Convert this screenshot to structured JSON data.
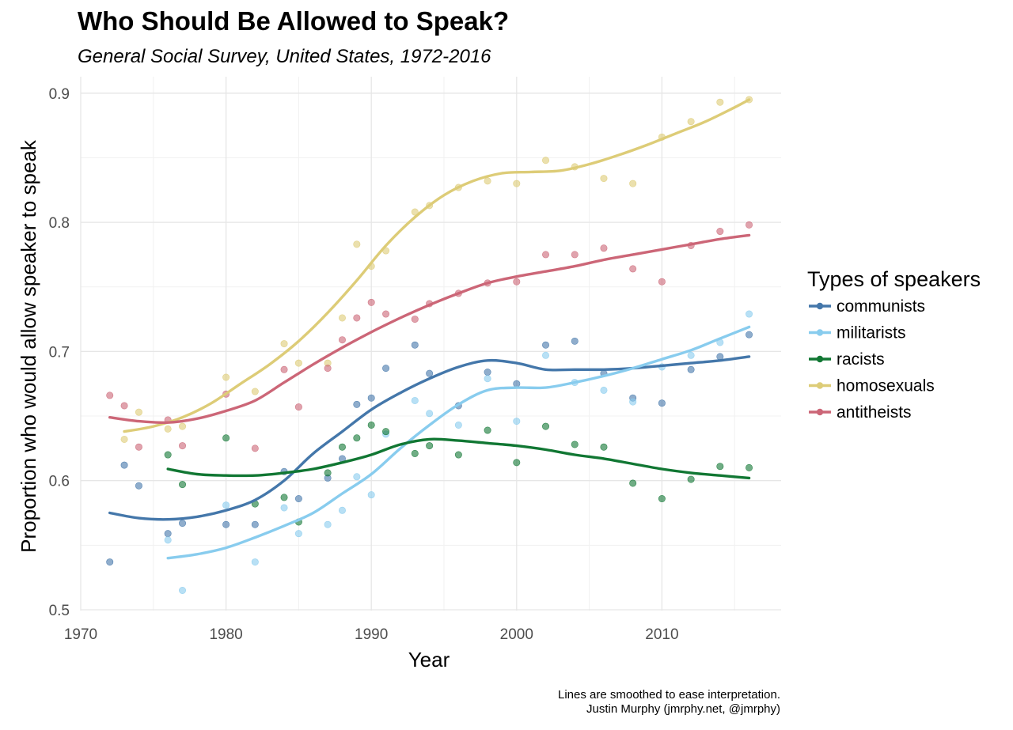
{
  "chart_data": {
    "type": "scatter",
    "title": "Who Should Be Allowed to Speak?",
    "subtitle": "General Social Survey, United States, 1972-2016",
    "xlabel": "Year",
    "ylabel": "Proportion who would allow speaker to speak",
    "xlim": [
      1970,
      2018
    ],
    "ylim": [
      0.5,
      0.9
    ],
    "x_ticks": [
      1970,
      1980,
      1990,
      2000,
      2010
    ],
    "y_ticks": [
      0.5,
      0.6,
      0.7,
      0.8,
      0.9
    ],
    "grid": true,
    "legend": {
      "title": "Types of speakers",
      "position": "right"
    },
    "caption": [
      "Lines are smoothed to ease interpretation.",
      "Justin Murphy (jmrphy.net, @jmrphy)"
    ],
    "series": [
      {
        "name": "communists",
        "color": "#4477aa",
        "points": [
          [
            1972,
            0.537
          ],
          [
            1973,
            0.612
          ],
          [
            1974,
            0.596
          ],
          [
            1976,
            0.559
          ],
          [
            1977,
            0.567
          ],
          [
            1980,
            0.566
          ],
          [
            1982,
            0.566
          ],
          [
            1984,
            0.607
          ],
          [
            1985,
            0.586
          ],
          [
            1987,
            0.602
          ],
          [
            1988,
            0.617
          ],
          [
            1989,
            0.659
          ],
          [
            1990,
            0.664
          ],
          [
            1991,
            0.687
          ],
          [
            1993,
            0.705
          ],
          [
            1994,
            0.683
          ],
          [
            1996,
            0.658
          ],
          [
            1998,
            0.684
          ],
          [
            2000,
            0.675
          ],
          [
            2002,
            0.705
          ],
          [
            2004,
            0.708
          ],
          [
            2006,
            0.683
          ],
          [
            2008,
            0.664
          ],
          [
            2010,
            0.66
          ],
          [
            2012,
            0.686
          ],
          [
            2014,
            0.696
          ],
          [
            2016,
            0.713
          ]
        ],
        "smooth": [
          [
            1972,
            0.575
          ],
          [
            1974,
            0.571
          ],
          [
            1976,
            0.57
          ],
          [
            1978,
            0.572
          ],
          [
            1980,
            0.577
          ],
          [
            1982,
            0.585
          ],
          [
            1984,
            0.6
          ],
          [
            1986,
            0.621
          ],
          [
            1988,
            0.638
          ],
          [
            1990,
            0.655
          ],
          [
            1992,
            0.668
          ],
          [
            1994,
            0.679
          ],
          [
            1996,
            0.688
          ],
          [
            1998,
            0.693
          ],
          [
            2000,
            0.691
          ],
          [
            2002,
            0.686
          ],
          [
            2004,
            0.686
          ],
          [
            2006,
            0.686
          ],
          [
            2008,
            0.687
          ],
          [
            2010,
            0.689
          ],
          [
            2012,
            0.691
          ],
          [
            2014,
            0.693
          ],
          [
            2016,
            0.696
          ]
        ]
      },
      {
        "name": "militarists",
        "color": "#88ccee",
        "points": [
          [
            1976,
            0.554
          ],
          [
            1977,
            0.515
          ],
          [
            1980,
            0.581
          ],
          [
            1982,
            0.537
          ],
          [
            1984,
            0.579
          ],
          [
            1985,
            0.559
          ],
          [
            1987,
            0.566
          ],
          [
            1988,
            0.577
          ],
          [
            1989,
            0.603
          ],
          [
            1990,
            0.589
          ],
          [
            1991,
            0.636
          ],
          [
            1993,
            0.662
          ],
          [
            1994,
            0.652
          ],
          [
            1996,
            0.643
          ],
          [
            1998,
            0.679
          ],
          [
            2000,
            0.646
          ],
          [
            2002,
            0.697
          ],
          [
            2004,
            0.676
          ],
          [
            2006,
            0.67
          ],
          [
            2008,
            0.661
          ],
          [
            2010,
            0.688
          ],
          [
            2012,
            0.697
          ],
          [
            2014,
            0.707
          ],
          [
            2016,
            0.729
          ]
        ],
        "smooth": [
          [
            1976,
            0.54
          ],
          [
            1978,
            0.543
          ],
          [
            1980,
            0.548
          ],
          [
            1982,
            0.556
          ],
          [
            1984,
            0.565
          ],
          [
            1986,
            0.575
          ],
          [
            1988,
            0.59
          ],
          [
            1990,
            0.605
          ],
          [
            1992,
            0.625
          ],
          [
            1994,
            0.643
          ],
          [
            1996,
            0.659
          ],
          [
            1998,
            0.67
          ],
          [
            2000,
            0.672
          ],
          [
            2002,
            0.672
          ],
          [
            2004,
            0.676
          ],
          [
            2006,
            0.681
          ],
          [
            2008,
            0.687
          ],
          [
            2010,
            0.694
          ],
          [
            2012,
            0.701
          ],
          [
            2014,
            0.71
          ],
          [
            2016,
            0.719
          ]
        ]
      },
      {
        "name": "racists",
        "color": "#117733",
        "points": [
          [
            1976,
            0.62
          ],
          [
            1977,
            0.597
          ],
          [
            1980,
            0.633
          ],
          [
            1982,
            0.582
          ],
          [
            1984,
            0.587
          ],
          [
            1985,
            0.568
          ],
          [
            1987,
            0.606
          ],
          [
            1988,
            0.626
          ],
          [
            1989,
            0.633
          ],
          [
            1990,
            0.643
          ],
          [
            1991,
            0.638
          ],
          [
            1993,
            0.621
          ],
          [
            1994,
            0.627
          ],
          [
            1996,
            0.62
          ],
          [
            1998,
            0.639
          ],
          [
            2000,
            0.614
          ],
          [
            2002,
            0.642
          ],
          [
            2004,
            0.628
          ],
          [
            2006,
            0.626
          ],
          [
            2008,
            0.598
          ],
          [
            2010,
            0.586
          ],
          [
            2012,
            0.601
          ],
          [
            2014,
            0.611
          ],
          [
            2016,
            0.61
          ]
        ],
        "smooth": [
          [
            1976,
            0.609
          ],
          [
            1978,
            0.605
          ],
          [
            1980,
            0.604
          ],
          [
            1982,
            0.604
          ],
          [
            1984,
            0.606
          ],
          [
            1986,
            0.609
          ],
          [
            1988,
            0.614
          ],
          [
            1990,
            0.62
          ],
          [
            1992,
            0.628
          ],
          [
            1994,
            0.632
          ],
          [
            1996,
            0.631
          ],
          [
            1998,
            0.629
          ],
          [
            2000,
            0.627
          ],
          [
            2002,
            0.624
          ],
          [
            2004,
            0.62
          ],
          [
            2006,
            0.617
          ],
          [
            2008,
            0.613
          ],
          [
            2010,
            0.609
          ],
          [
            2012,
            0.606
          ],
          [
            2014,
            0.604
          ],
          [
            2016,
            0.602
          ]
        ]
      },
      {
        "name": "homosexuals",
        "color": "#ddcc77",
        "points": [
          [
            1973,
            0.632
          ],
          [
            1974,
            0.653
          ],
          [
            1976,
            0.64
          ],
          [
            1977,
            0.642
          ],
          [
            1980,
            0.68
          ],
          [
            1982,
            0.669
          ],
          [
            1984,
            0.706
          ],
          [
            1985,
            0.691
          ],
          [
            1987,
            0.691
          ],
          [
            1988,
            0.726
          ],
          [
            1989,
            0.783
          ],
          [
            1990,
            0.766
          ],
          [
            1991,
            0.778
          ],
          [
            1993,
            0.808
          ],
          [
            1994,
            0.813
          ],
          [
            1996,
            0.827
          ],
          [
            1998,
            0.832
          ],
          [
            2000,
            0.83
          ],
          [
            2002,
            0.848
          ],
          [
            2004,
            0.843
          ],
          [
            2006,
            0.834
          ],
          [
            2008,
            0.83
          ],
          [
            2010,
            0.866
          ],
          [
            2012,
            0.878
          ],
          [
            2014,
            0.893
          ],
          [
            2016,
            0.895
          ]
        ],
        "smooth": [
          [
            1973,
            0.638
          ],
          [
            1975,
            0.642
          ],
          [
            1977,
            0.649
          ],
          [
            1979,
            0.66
          ],
          [
            1981,
            0.675
          ],
          [
            1983,
            0.69
          ],
          [
            1985,
            0.708
          ],
          [
            1987,
            0.73
          ],
          [
            1989,
            0.755
          ],
          [
            1991,
            0.782
          ],
          [
            1993,
            0.804
          ],
          [
            1995,
            0.821
          ],
          [
            1997,
            0.832
          ],
          [
            1999,
            0.838
          ],
          [
            2001,
            0.839
          ],
          [
            2003,
            0.84
          ],
          [
            2005,
            0.845
          ],
          [
            2007,
            0.852
          ],
          [
            2009,
            0.86
          ],
          [
            2011,
            0.869
          ],
          [
            2013,
            0.878
          ],
          [
            2015,
            0.889
          ],
          [
            2016,
            0.895
          ]
        ]
      },
      {
        "name": "antitheists",
        "color": "#cc6677",
        "points": [
          [
            1972,
            0.666
          ],
          [
            1973,
            0.658
          ],
          [
            1974,
            0.626
          ],
          [
            1976,
            0.647
          ],
          [
            1977,
            0.627
          ],
          [
            1980,
            0.667
          ],
          [
            1982,
            0.625
          ],
          [
            1984,
            0.686
          ],
          [
            1985,
            0.657
          ],
          [
            1987,
            0.687
          ],
          [
            1988,
            0.709
          ],
          [
            1989,
            0.726
          ],
          [
            1990,
            0.738
          ],
          [
            1991,
            0.729
          ],
          [
            1993,
            0.725
          ],
          [
            1994,
            0.737
          ],
          [
            1996,
            0.745
          ],
          [
            1998,
            0.753
          ],
          [
            2000,
            0.754
          ],
          [
            2002,
            0.775
          ],
          [
            2004,
            0.775
          ],
          [
            2006,
            0.78
          ],
          [
            2008,
            0.764
          ],
          [
            2010,
            0.754
          ],
          [
            2012,
            0.782
          ],
          [
            2014,
            0.793
          ],
          [
            2016,
            0.798
          ]
        ],
        "smooth": [
          [
            1972,
            0.649
          ],
          [
            1974,
            0.646
          ],
          [
            1976,
            0.645
          ],
          [
            1978,
            0.648
          ],
          [
            1980,
            0.654
          ],
          [
            1982,
            0.662
          ],
          [
            1984,
            0.676
          ],
          [
            1986,
            0.69
          ],
          [
            1988,
            0.703
          ],
          [
            1990,
            0.715
          ],
          [
            1992,
            0.726
          ],
          [
            1994,
            0.736
          ],
          [
            1996,
            0.745
          ],
          [
            1998,
            0.753
          ],
          [
            2000,
            0.758
          ],
          [
            2002,
            0.762
          ],
          [
            2004,
            0.766
          ],
          [
            2006,
            0.771
          ],
          [
            2008,
            0.775
          ],
          [
            2010,
            0.779
          ],
          [
            2012,
            0.783
          ],
          [
            2014,
            0.787
          ],
          [
            2016,
            0.79
          ]
        ]
      }
    ]
  }
}
